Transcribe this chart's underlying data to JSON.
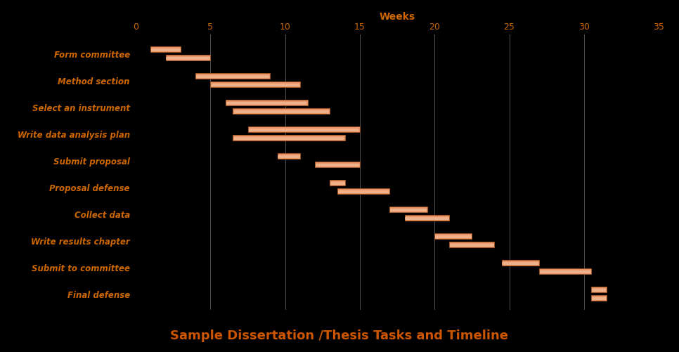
{
  "title": "Sample Dissertation /Thesis Tasks and Timeline",
  "xlabel": "Weeks",
  "background_color": "#000000",
  "text_color": "#CC6600",
  "title_color": "#CC5500",
  "bar_color_face": "#E8956A",
  "bar_color_highlight": "#F5C4A0",
  "bar_color_edge": "#A05520",
  "grid_color": "#666666",
  "xlim": [
    0,
    35
  ],
  "xticks": [
    0,
    5,
    10,
    15,
    20,
    25,
    30,
    35
  ],
  "tasks": [
    "Form committee",
    "Method section",
    "Select an instrument",
    "Write data analysis plan",
    "Submit proposal",
    "Proposal defense",
    "Collect data",
    "Write results chapter",
    "Submit to committee",
    "Final defense"
  ],
  "bars": [
    {
      "task": "Form committee",
      "bar1": [
        1.0,
        3.0
      ],
      "bar2": [
        2.0,
        5.0
      ]
    },
    {
      "task": "Method section",
      "bar1": [
        4.0,
        9.0
      ],
      "bar2": [
        5.0,
        11.0
      ]
    },
    {
      "task": "Select an instrument",
      "bar1": [
        6.0,
        11.5
      ],
      "bar2": [
        6.5,
        13.0
      ]
    },
    {
      "task": "Write data analysis plan",
      "bar1": [
        7.5,
        15.0
      ],
      "bar2": [
        6.5,
        14.0
      ]
    },
    {
      "task": "Submit proposal",
      "bar1": [
        9.5,
        11.0
      ],
      "bar2": [
        12.0,
        15.0
      ]
    },
    {
      "task": "Proposal defense",
      "bar1": [
        13.0,
        14.0
      ],
      "bar2": [
        13.5,
        17.0
      ]
    },
    {
      "task": "Collect data",
      "bar1": [
        17.0,
        19.5
      ],
      "bar2": [
        18.0,
        21.0
      ]
    },
    {
      "task": "Write results chapter",
      "bar1": [
        20.0,
        22.5
      ],
      "bar2": [
        21.0,
        24.0
      ]
    },
    {
      "task": "Submit to committee",
      "bar1": [
        24.5,
        27.0
      ],
      "bar2": [
        27.0,
        30.5
      ]
    },
    {
      "task": "Final defense",
      "bar1": [
        30.5,
        31.5
      ],
      "bar2": [
        30.5,
        31.5
      ]
    }
  ]
}
